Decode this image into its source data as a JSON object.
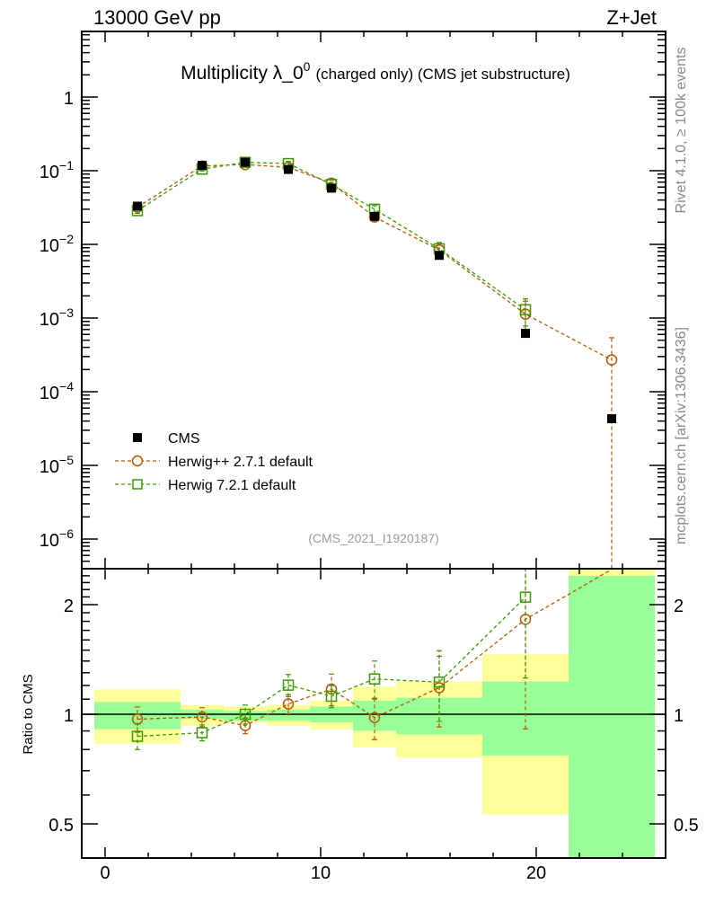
{
  "header": {
    "left": "13000 GeV pp",
    "right": "Z+Jet"
  },
  "side_text": {
    "top": "Rivet 4.1.0, ≥ 100k events",
    "bottom": "mcplots.cern.ch [arXiv:1306.3436]"
  },
  "analysis_id": "(CMS_2021_I1920187)",
  "chart_data": {
    "type": "scatter",
    "title": {
      "main": "Multiplicity λ_0",
      "sup": "0",
      "suffix": "(charged only) (CMS jet substructure)"
    },
    "xlabel": "",
    "ylabel": "",
    "ratio_ylabel": "Ratio to CMS",
    "xlim": [
      -1.1,
      26
    ],
    "ylim": [
      4e-07,
      7.8
    ],
    "ratio_ylim": [
      0.4,
      2.5
    ],
    "yscale": "log",
    "x_ticks": [
      "0",
      "10",
      "20"
    ],
    "x_tick_values": [
      0,
      10,
      20
    ],
    "y_ticks": [
      {
        "value": 1,
        "base": "1",
        "exp": ""
      },
      {
        "value": 0.1,
        "base": "10",
        "exp": "−1"
      },
      {
        "value": 0.01,
        "base": "10",
        "exp": "−2"
      },
      {
        "value": 0.001,
        "base": "10",
        "exp": "−3"
      },
      {
        "value": 0.0001,
        "base": "10",
        "exp": "−4"
      },
      {
        "value": 1e-05,
        "base": "10",
        "exp": "−5"
      },
      {
        "value": 1e-06,
        "base": "10",
        "exp": "−6"
      }
    ],
    "ratio_ticks": [
      {
        "value": 2,
        "label": "2"
      },
      {
        "value": 1,
        "label": "1"
      },
      {
        "value": 0.5,
        "label": "0.5"
      }
    ],
    "legend_position": "bottom-left",
    "bin_edges": [
      -0.5,
      3.5,
      5.5,
      7.5,
      9.5,
      11.5,
      13.5,
      17.5,
      21.5,
      25.5
    ],
    "x": [
      1.5,
      4.5,
      6.5,
      8.5,
      10.5,
      12.5,
      15.5,
      19.5,
      23.5
    ],
    "reference": {
      "name": "CMS",
      "values": [
        0.033,
        0.118,
        0.13,
        0.104,
        0.058,
        0.024,
        0.0071,
        0.00062,
        4.3e-05
      ],
      "band_total": [
        [
          0.83,
          1.17
        ],
        [
          0.93,
          1.06
        ],
        [
          0.95,
          1.05
        ],
        [
          0.93,
          1.06
        ],
        [
          0.91,
          1.09
        ],
        [
          0.81,
          1.19
        ],
        [
          0.76,
          1.23
        ],
        [
          0.53,
          1.46
        ],
        [
          0.2,
          2.6
        ]
      ],
      "band_stat": [
        [
          0.91,
          1.08
        ],
        [
          0.97,
          1.03
        ],
        [
          0.96,
          1.02
        ],
        [
          0.96,
          1.03
        ],
        [
          0.95,
          1.05
        ],
        [
          0.9,
          1.09
        ],
        [
          0.88,
          1.11
        ],
        [
          0.77,
          1.23
        ],
        [
          0.3,
          2.4
        ]
      ],
      "color": "#000000"
    },
    "series": [
      {
        "name": "Herwig++ 2.7.1 default",
        "marker": "circle",
        "color": "#b35900",
        "values": [
          0.032,
          0.116,
          0.121,
          0.111,
          0.068,
          0.0235,
          0.0084,
          0.00113,
          0.00027
        ],
        "rel_err": [
          0.08,
          0.06,
          0.05,
          0.06,
          0.1,
          0.13,
          0.22,
          0.5,
          1.0
        ]
      },
      {
        "name": "Herwig 7.2.1 default",
        "marker": "square",
        "color": "#3a9a00",
        "values": [
          0.0287,
          0.105,
          0.13,
          0.125,
          0.065,
          0.03,
          0.0087,
          0.0013,
          null
        ],
        "rel_err": [
          0.08,
          0.05,
          0.06,
          0.07,
          0.07,
          0.12,
          0.22,
          0.4,
          null
        ]
      }
    ],
    "band_colors": {
      "total": "#ffff99",
      "stat": "#99ff99"
    }
  }
}
